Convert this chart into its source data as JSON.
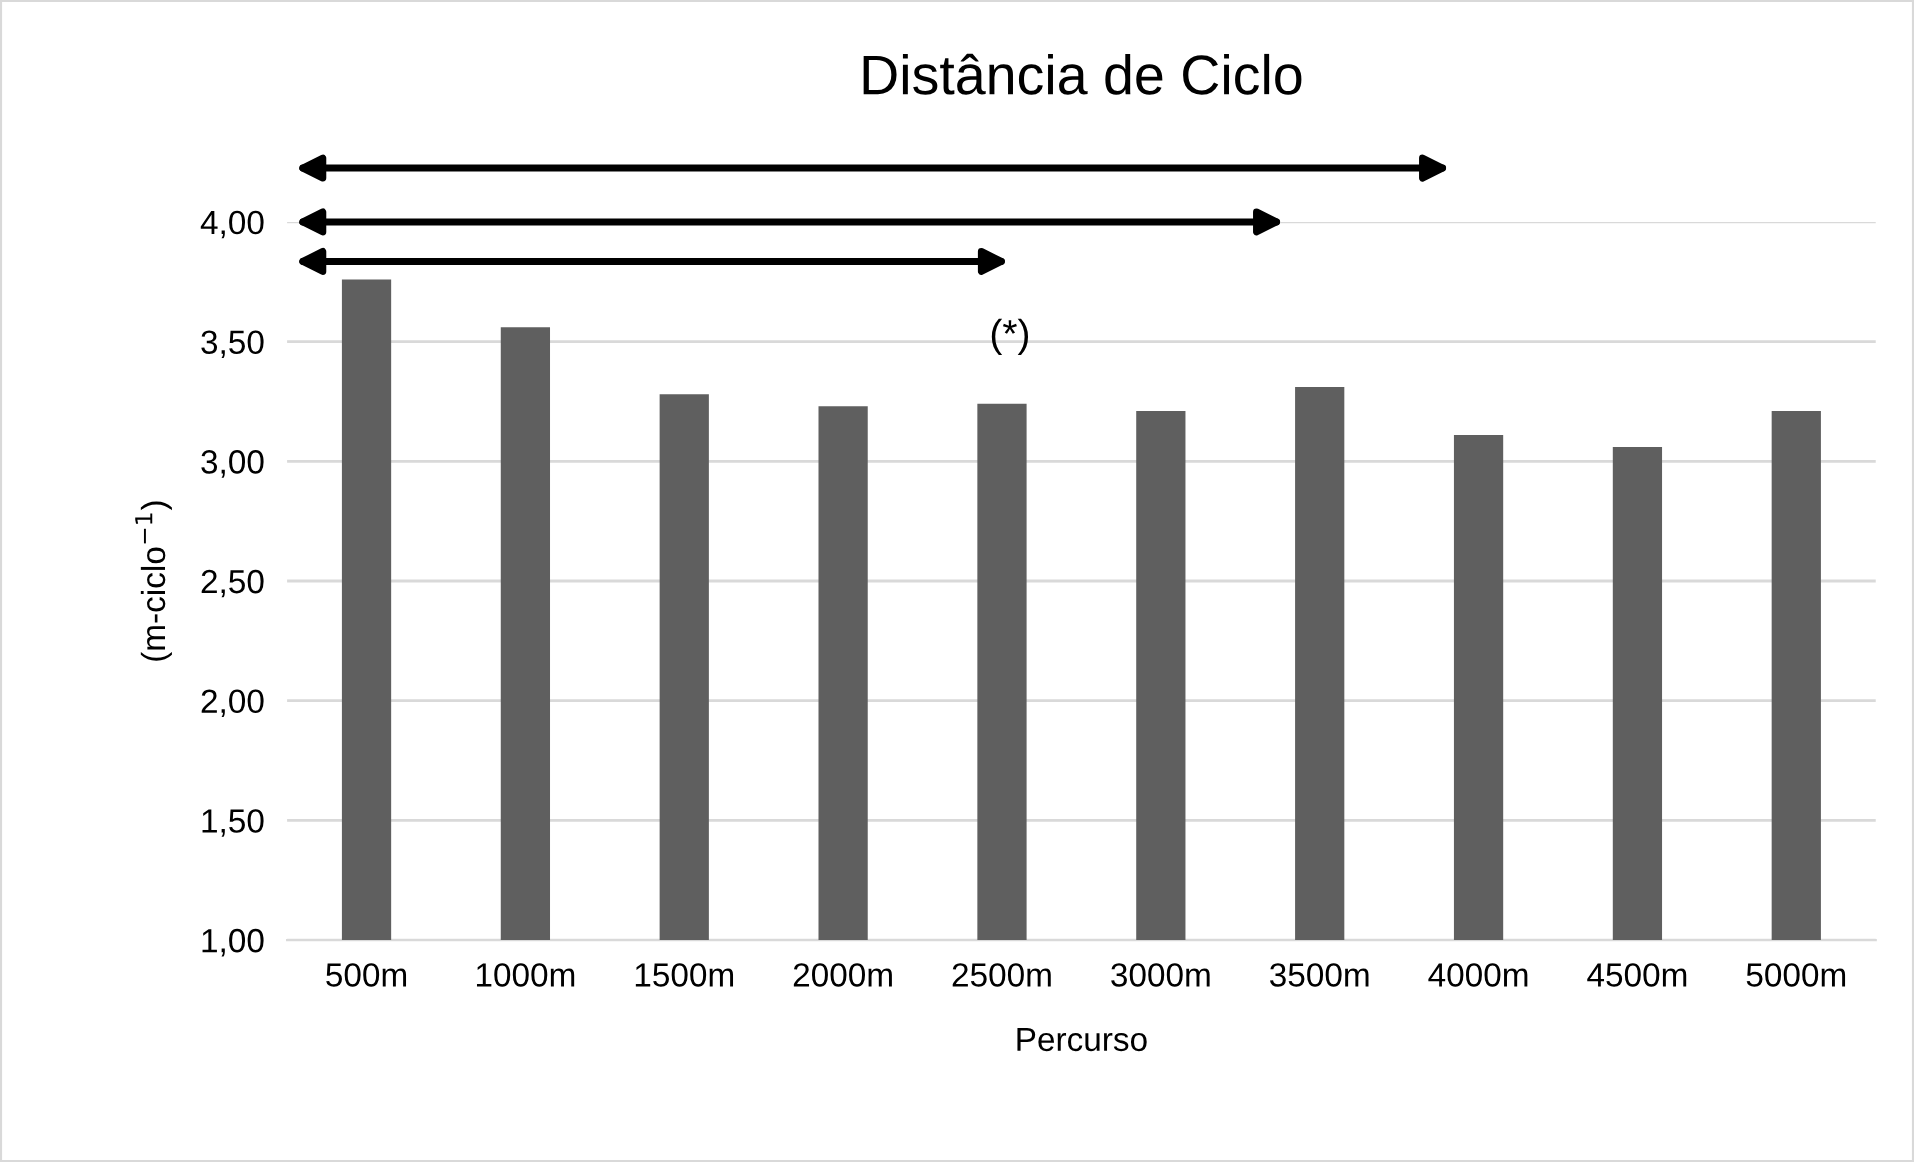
{
  "chart_data": {
    "type": "bar",
    "title": "Distância de Ciclo",
    "xlabel": "Percurso",
    "ylabel": "(m-ciclo$^{−1}$)",
    "categories": [
      "500m",
      "1000m",
      "1500m",
      "2000m",
      "2500m",
      "3000m",
      "3500m",
      "4000m",
      "4500m",
      "5000m"
    ],
    "values": [
      3.76,
      3.56,
      3.28,
      3.23,
      3.24,
      3.21,
      3.31,
      3.11,
      3.06,
      3.21
    ],
    "color": "#5f5f5f",
    "ylim": [
      1,
      4
    ],
    "yticks": [
      {
        "value": 1,
        "label": "1,00"
      },
      {
        "value": 1.5,
        "label": "1,50"
      },
      {
        "value": 2,
        "label": "2,00"
      },
      {
        "value": 2.5,
        "label": "2,50"
      },
      {
        "value": 3,
        "label": "3,00"
      },
      {
        "value": 3.5,
        "label": "3,50"
      },
      {
        "value": 4,
        "label": "4,00"
      }
    ],
    "grid": "y",
    "annotations": [
      "(*)"
    ]
  }
}
